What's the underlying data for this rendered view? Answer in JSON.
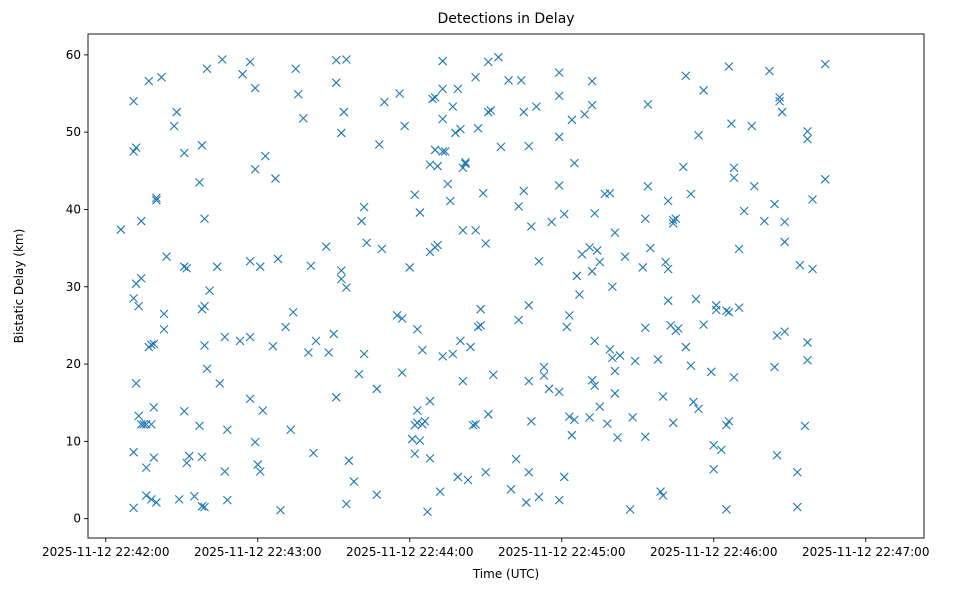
{
  "chart_data": {
    "type": "scatter",
    "title": "Detections in Delay",
    "xlabel": "Time (UTC)",
    "ylabel": "Bistatic Delay (km)",
    "marker": "x",
    "color": "#1f77b4",
    "grid": false,
    "xlim": [
      "2025-11-12 22:41:53",
      "2025-11-12 22:47:23"
    ],
    "ylim": [
      -2.5,
      62.7
    ],
    "xticks": [
      {
        "value": "2025-11-12 22:42:00",
        "label": "2025-11-12 22:42:00"
      },
      {
        "value": "2025-11-12 22:43:00",
        "label": "2025-11-12 22:43:00"
      },
      {
        "value": "2025-11-12 22:44:00",
        "label": "2025-11-12 22:44:00"
      },
      {
        "value": "2025-11-12 22:45:00",
        "label": "2025-11-12 22:45:00"
      },
      {
        "value": "2025-11-12 22:46:00",
        "label": "2025-11-12 22:46:00"
      },
      {
        "value": "2025-11-12 22:47:00",
        "label": "2025-11-12 22:47:00"
      }
    ],
    "yticks": [
      0,
      10,
      20,
      30,
      40,
      50,
      60
    ],
    "points": [
      [
        "22:42:06",
        37.4
      ],
      [
        "22:42:11",
        54.0
      ],
      [
        "22:42:11",
        47.5
      ],
      [
        "22:42:12",
        48.0
      ],
      [
        "22:42:11",
        28.5
      ],
      [
        "22:42:12",
        30.4
      ],
      [
        "22:42:13",
        27.5
      ],
      [
        "22:42:14",
        31.1
      ],
      [
        "22:42:14",
        38.5
      ],
      [
        "22:42:12",
        17.5
      ],
      [
        "22:42:13",
        13.3
      ],
      [
        "22:42:14",
        12.2
      ],
      [
        "22:42:15",
        12.2
      ],
      [
        "22:42:16",
        12.2
      ],
      [
        "22:42:18",
        12.2
      ],
      [
        "22:42:11",
        8.6
      ],
      [
        "22:42:16",
        6.6
      ],
      [
        "22:42:11",
        1.4
      ],
      [
        "22:42:16",
        3.0
      ],
      [
        "22:42:18",
        2.5
      ],
      [
        "22:42:17",
        56.6
      ],
      [
        "22:42:22",
        57.1
      ],
      [
        "22:42:20",
        41.5
      ],
      [
        "22:42:20",
        41.2
      ],
      [
        "22:42:17",
        22.2
      ],
      [
        "22:42:18",
        22.5
      ],
      [
        "22:42:19",
        22.6
      ],
      [
        "22:42:23",
        26.5
      ],
      [
        "22:42:23",
        24.5
      ],
      [
        "22:42:19",
        14.4
      ],
      [
        "22:42:19",
        7.9
      ],
      [
        "22:42:20",
        2.1
      ],
      [
        "22:42:27",
        50.8
      ],
      [
        "22:42:28",
        52.6
      ],
      [
        "22:42:31",
        47.3
      ],
      [
        "22:42:24",
        33.9
      ],
      [
        "22:42:31",
        32.6
      ],
      [
        "22:42:32",
        32.4
      ],
      [
        "22:42:31",
        13.9
      ],
      [
        "22:42:32",
        7.2
      ],
      [
        "22:42:33",
        8.1
      ],
      [
        "22:42:29",
        2.5
      ],
      [
        "22:42:35",
        2.9
      ],
      [
        "22:42:37",
        43.5
      ],
      [
        "22:42:38",
        48.3
      ],
      [
        "22:42:39",
        38.8
      ],
      [
        "22:42:38",
        27.1
      ],
      [
        "22:42:39",
        27.5
      ],
      [
        "22:42:41",
        29.5
      ],
      [
        "22:42:39",
        22.4
      ],
      [
        "22:42:40",
        19.4
      ],
      [
        "22:42:37",
        12.0
      ],
      [
        "22:42:38",
        8.0
      ],
      [
        "22:42:38",
        1.6
      ],
      [
        "22:42:39",
        1.5
      ],
      [
        "22:42:40",
        58.2
      ],
      [
        "22:42:46",
        59.4
      ],
      [
        "22:42:44",
        32.6
      ],
      [
        "22:42:45",
        17.5
      ],
      [
        "22:42:47",
        23.5
      ],
      [
        "22:42:48",
        11.5
      ],
      [
        "22:42:47",
        6.1
      ],
      [
        "22:42:48",
        2.4
      ],
      [
        "22:42:54",
        57.5
      ],
      [
        "22:42:57",
        59.1
      ],
      [
        "22:42:59",
        55.7
      ],
      [
        "22:42:59",
        45.2
      ],
      [
        "22:43:03",
        46.9
      ],
      [
        "22:42:53",
        23.0
      ],
      [
        "22:42:57",
        23.5
      ],
      [
        "22:42:57",
        15.5
      ],
      [
        "22:43:02",
        14.0
      ],
      [
        "22:42:59",
        9.9
      ],
      [
        "22:43:00",
        7.0
      ],
      [
        "22:43:01",
        6.1
      ],
      [
        "22:42:57",
        33.3
      ],
      [
        "22:43:01",
        32.6
      ],
      [
        "22:43:07",
        44.0
      ],
      [
        "22:43:08",
        33.6
      ],
      [
        "22:43:06",
        22.3
      ],
      [
        "22:43:11",
        24.8
      ],
      [
        "22:43:13",
        11.5
      ],
      [
        "22:43:09",
        1.1
      ],
      [
        "22:43:14",
        26.7
      ],
      [
        "22:43:15",
        58.2
      ],
      [
        "22:43:16",
        54.9
      ],
      [
        "22:43:18",
        51.8
      ],
      [
        "22:43:21",
        32.7
      ],
      [
        "22:43:20",
        21.5
      ],
      [
        "22:43:23",
        23.0
      ],
      [
        "22:43:22",
        8.5
      ],
      [
        "22:43:27",
        35.2
      ],
      [
        "22:43:28",
        21.5
      ],
      [
        "22:43:30",
        23.9
      ],
      [
        "22:43:31",
        15.7
      ],
      [
        "22:43:31",
        56.4
      ],
      [
        "22:43:31",
        59.3
      ],
      [
        "22:43:33",
        49.9
      ],
      [
        "22:43:34",
        52.6
      ],
      [
        "22:43:35",
        59.4
      ],
      [
        "22:43:33",
        32.1
      ],
      [
        "22:43:33",
        31.0
      ],
      [
        "22:43:35",
        29.9
      ],
      [
        "22:43:36",
        7.5
      ],
      [
        "22:43:35",
        1.9
      ],
      [
        "22:43:38",
        4.8
      ],
      [
        "22:43:41",
        38.5
      ],
      [
        "22:43:42",
        40.3
      ],
      [
        "22:43:43",
        35.7
      ],
      [
        "22:43:40",
        18.7
      ],
      [
        "22:43:42",
        21.3
      ],
      [
        "22:43:47",
        16.8
      ],
      [
        "22:43:47",
        3.1
      ],
      [
        "22:43:48",
        48.4
      ],
      [
        "22:43:49",
        34.9
      ],
      [
        "22:43:50",
        53.9
      ],
      [
        "22:43:55",
        26.3
      ],
      [
        "22:43:57",
        25.9
      ],
      [
        "22:43:56",
        55.0
      ],
      [
        "22:43:58",
        50.8
      ],
      [
        "22:43:57",
        18.9
      ],
      [
        "22:44:00",
        32.5
      ],
      [
        "22:44:02",
        41.9
      ],
      [
        "22:44:04",
        39.6
      ],
      [
        "22:44:03",
        24.5
      ],
      [
        "22:44:05",
        21.8
      ],
      [
        "22:44:02",
        12.1
      ],
      [
        "22:44:03",
        12.4
      ],
      [
        "22:44:05",
        12.2
      ],
      [
        "22:44:04",
        10.1
      ],
      [
        "22:44:02",
        8.4
      ],
      [
        "22:44:01",
        10.3
      ],
      [
        "22:44:03",
        14.0
      ],
      [
        "22:44:06",
        12.6
      ],
      [
        "22:44:07",
        0.9
      ],
      [
        "22:44:08",
        7.8
      ],
      [
        "22:44:08",
        15.2
      ],
      [
        "22:44:08",
        34.5
      ],
      [
        "22:44:08",
        45.8
      ],
      [
        "22:44:09",
        54.3
      ],
      [
        "22:44:10",
        54.5
      ],
      [
        "22:44:10",
        47.7
      ],
      [
        "22:44:11",
        45.6
      ],
      [
        "22:44:10",
        35.1
      ],
      [
        "22:44:11",
        35.4
      ],
      [
        "22:44:12",
        3.5
      ],
      [
        "22:44:13",
        59.2
      ],
      [
        "22:44:13",
        55.6
      ],
      [
        "22:44:13",
        51.7
      ],
      [
        "22:44:13",
        47.5
      ],
      [
        "22:44:14",
        47.5
      ],
      [
        "22:44:13",
        21.0
      ],
      [
        "22:44:15",
        43.3
      ],
      [
        "22:44:16",
        41.1
      ],
      [
        "22:44:17",
        21.3
      ],
      [
        "22:44:17",
        53.3
      ],
      [
        "22:44:19",
        55.6
      ],
      [
        "22:44:18",
        49.9
      ],
      [
        "22:44:20",
        50.4
      ],
      [
        "22:44:19",
        5.4
      ],
      [
        "22:44:20",
        23.0
      ],
      [
        "22:44:21",
        17.8
      ],
      [
        "22:44:21",
        37.3
      ],
      [
        "22:44:21",
        45.4
      ],
      [
        "22:44:22",
        45.9
      ],
      [
        "22:44:22",
        46.1
      ],
      [
        "22:44:23",
        5.0
      ],
      [
        "22:44:24",
        22.2
      ],
      [
        "22:44:25",
        12.1
      ],
      [
        "22:44:26",
        12.2
      ],
      [
        "22:44:26",
        37.3
      ],
      [
        "22:44:26",
        57.1
      ],
      [
        "22:44:27",
        50.5
      ],
      [
        "22:44:27",
        24.8
      ],
      [
        "22:44:28",
        25.0
      ],
      [
        "22:44:28",
        27.1
      ],
      [
        "22:44:29",
        42.1
      ],
      [
        "22:44:30",
        35.6
      ],
      [
        "22:44:30",
        6.0
      ],
      [
        "22:44:31",
        13.5
      ],
      [
        "22:44:31",
        59.1
      ],
      [
        "22:44:31",
        52.6
      ],
      [
        "22:44:32",
        52.8
      ],
      [
        "22:44:33",
        18.6
      ],
      [
        "22:44:35",
        59.7
      ],
      [
        "22:44:36",
        48.1
      ],
      [
        "22:44:39",
        56.7
      ],
      [
        "22:44:40",
        3.8
      ],
      [
        "22:44:42",
        7.7
      ],
      [
        "22:44:43",
        25.7
      ],
      [
        "22:44:43",
        40.4
      ],
      [
        "22:44:44",
        56.7
      ],
      [
        "22:44:45",
        42.4
      ],
      [
        "22:44:45",
        52.6
      ],
      [
        "22:44:47",
        48.2
      ],
      [
        "22:44:47",
        27.6
      ],
      [
        "22:44:47",
        17.8
      ],
      [
        "22:44:47",
        6.0
      ],
      [
        "22:44:46",
        2.1
      ],
      [
        "22:44:48",
        12.6
      ],
      [
        "22:44:48",
        37.8
      ],
      [
        "22:44:50",
        53.3
      ],
      [
        "22:44:51",
        33.3
      ],
      [
        "22:44:51",
        2.8
      ],
      [
        "22:44:53",
        18.5
      ],
      [
        "22:44:53",
        19.6
      ],
      [
        "22:44:55",
        16.8
      ],
      [
        "22:44:56",
        38.4
      ],
      [
        "22:44:59",
        16.4
      ],
      [
        "22:44:59",
        2.4
      ],
      [
        "22:44:59",
        57.7
      ],
      [
        "22:44:59",
        54.7
      ],
      [
        "22:44:59",
        49.4
      ],
      [
        "22:44:59",
        43.1
      ],
      [
        "22:45:01",
        39.4
      ],
      [
        "22:45:01",
        5.4
      ],
      [
        "22:45:02",
        24.8
      ],
      [
        "22:45:03",
        26.3
      ],
      [
        "22:45:03",
        13.2
      ],
      [
        "22:45:04",
        51.6
      ],
      [
        "22:45:04",
        10.8
      ],
      [
        "22:45:05",
        12.8
      ],
      [
        "22:45:05",
        46.0
      ],
      [
        "22:45:06",
        31.4
      ],
      [
        "22:45:07",
        29.0
      ],
      [
        "22:45:08",
        34.2
      ],
      [
        "22:45:09",
        52.3
      ],
      [
        "22:45:11",
        35.1
      ],
      [
        "22:45:11",
        13.1
      ],
      [
        "22:45:12",
        17.9
      ],
      [
        "22:45:12",
        56.6
      ],
      [
        "22:45:12",
        53.5
      ],
      [
        "22:45:13",
        39.5
      ],
      [
        "22:45:12",
        32.0
      ],
      [
        "22:45:13",
        17.2
      ],
      [
        "22:45:13",
        23.0
      ],
      [
        "22:45:14",
        34.7
      ],
      [
        "22:45:15",
        33.2
      ],
      [
        "22:45:15",
        14.5
      ],
      [
        "22:45:17",
        42.0
      ],
      [
        "22:45:18",
        12.3
      ],
      [
        "22:45:19",
        42.1
      ],
      [
        "22:45:19",
        21.9
      ],
      [
        "22:45:20",
        30.0
      ],
      [
        "22:45:20",
        20.8
      ],
      [
        "22:45:21",
        19.1
      ],
      [
        "22:45:21",
        16.2
      ],
      [
        "22:45:22",
        10.5
      ],
      [
        "22:45:21",
        37.0
      ],
      [
        "22:45:23",
        21.1
      ],
      [
        "22:45:25",
        33.9
      ],
      [
        "22:45:27",
        1.2
      ],
      [
        "22:45:28",
        13.1
      ],
      [
        "22:45:29",
        20.4
      ],
      [
        "22:45:32",
        32.5
      ],
      [
        "22:45:33",
        38.8
      ],
      [
        "22:45:33",
        24.7
      ],
      [
        "22:45:33",
        10.6
      ],
      [
        "22:45:34",
        43.0
      ],
      [
        "22:45:34",
        53.6
      ],
      [
        "22:45:35",
        35.0
      ],
      [
        "22:45:38",
        20.6
      ],
      [
        "22:45:39",
        3.5
      ],
      [
        "22:45:40",
        3.0
      ],
      [
        "22:45:40",
        15.8
      ],
      [
        "22:45:41",
        33.2
      ],
      [
        "22:45:42",
        41.1
      ],
      [
        "22:45:42",
        32.3
      ],
      [
        "22:45:42",
        28.2
      ],
      [
        "22:45:43",
        25.0
      ],
      [
        "22:45:44",
        12.4
      ],
      [
        "22:45:44",
        38.6
      ],
      [
        "22:45:44",
        38.2
      ],
      [
        "22:45:45",
        38.8
      ],
      [
        "22:45:45",
        24.3
      ],
      [
        "22:45:46",
        24.6
      ],
      [
        "22:45:48",
        45.5
      ],
      [
        "22:45:49",
        22.2
      ],
      [
        "22:45:49",
        57.3
      ],
      [
        "22:45:51",
        42.0
      ],
      [
        "22:45:51",
        19.8
      ],
      [
        "22:45:52",
        15.1
      ],
      [
        "22:45:53",
        28.4
      ],
      [
        "22:45:54",
        49.6
      ],
      [
        "22:45:54",
        14.2
      ],
      [
        "22:45:56",
        55.4
      ],
      [
        "22:45:56",
        25.1
      ],
      [
        "22:45:59",
        19.0
      ],
      [
        "22:46:00",
        9.5
      ],
      [
        "22:46:00",
        6.4
      ],
      [
        "22:46:01",
        27.6
      ],
      [
        "22:46:01",
        27.0
      ],
      [
        "22:46:03",
        8.9
      ],
      [
        "22:46:05",
        26.9
      ],
      [
        "22:46:05",
        12.1
      ],
      [
        "22:46:06",
        12.6
      ],
      [
        "22:46:06",
        26.7
      ],
      [
        "22:46:05",
        1.2
      ],
      [
        "22:46:06",
        58.5
      ],
      [
        "22:46:07",
        51.1
      ],
      [
        "22:46:08",
        45.4
      ],
      [
        "22:46:08",
        44.1
      ],
      [
        "22:46:08",
        18.3
      ],
      [
        "22:46:10",
        27.3
      ],
      [
        "22:46:10",
        34.9
      ],
      [
        "22:46:12",
        39.8
      ],
      [
        "22:46:15",
        50.8
      ],
      [
        "22:46:16",
        43.0
      ],
      [
        "22:46:20",
        38.5
      ],
      [
        "22:46:22",
        57.9
      ],
      [
        "22:46:24",
        19.6
      ],
      [
        "22:46:24",
        40.7
      ],
      [
        "22:46:25",
        23.7
      ],
      [
        "22:46:25",
        8.2
      ],
      [
        "22:46:26",
        54.5
      ],
      [
        "22:46:26",
        54.0
      ],
      [
        "22:46:27",
        52.6
      ],
      [
        "22:46:28",
        38.4
      ],
      [
        "22:46:28",
        35.8
      ],
      [
        "22:46:28",
        24.2
      ],
      [
        "22:46:34",
        32.8
      ],
      [
        "22:46:33",
        6.0
      ],
      [
        "22:46:33",
        1.5
      ],
      [
        "22:46:36",
        12.0
      ],
      [
        "22:46:37",
        49.1
      ],
      [
        "22:46:37",
        50.1
      ],
      [
        "22:46:37",
        22.8
      ],
      [
        "22:46:37",
        20.5
      ],
      [
        "22:46:39",
        41.3
      ],
      [
        "22:46:39",
        32.3
      ],
      [
        "22:46:44",
        58.8
      ],
      [
        "22:46:44",
        43.9
      ]
    ]
  }
}
